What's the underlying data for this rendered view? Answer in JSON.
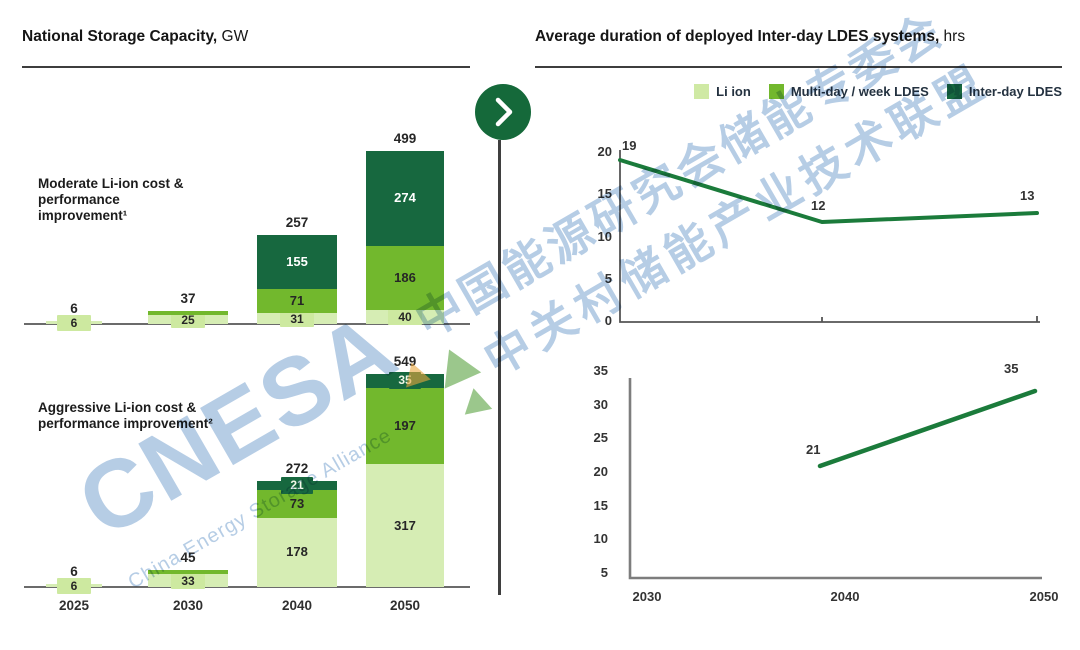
{
  "page": {
    "background": "#ffffff"
  },
  "colors": {
    "light_green": "#d6edb4",
    "chip_green": "#cde9a0",
    "mid_green": "#72b82d",
    "dark_green": "#17683f",
    "line_green": "#1b7b3b",
    "circle_green": "#15693a",
    "watermark_blue": "#a9c4e1",
    "logo_orange": "#e9a63d",
    "logo_green": "#58a23f",
    "axis_gray": "#6b6b6b",
    "text_dark": "#262626"
  },
  "left_panel": {
    "title": {
      "bold": "National Storage Capacity,",
      "unit": " GW"
    },
    "charts": [
      {
        "name": "moderate",
        "label_lines": [
          "Moderate Li-ion cost &",
          "performance",
          "improvement¹"
        ]
      },
      {
        "name": "aggressive",
        "label_lines": [
          "Aggressive Li-ion cost &",
          "performance improvement²"
        ]
      }
    ]
  },
  "right_panel": {
    "title": {
      "bold": "Average duration of deployed Inter-day LDES systems,",
      "unit": " hrs"
    }
  },
  "legend": {
    "items": [
      {
        "label": "Li ion",
        "color": "#cfe9a4"
      },
      {
        "label": "Multi-day / week LDES",
        "color": "#72b82d"
      },
      {
        "label": "Inter-day LDES",
        "color": "#17683f"
      }
    ]
  },
  "watermark": {
    "brand": "CNESA",
    "subtitle": "China Energy Storage Alliance",
    "cn_line1": "中国能源研究会储能专委会",
    "cn_line2": "中关村储能产业技术联盟"
  },
  "chart_data": [
    {
      "id": "national-capacity-moderate",
      "type": "bar",
      "stacked": true,
      "title": "Moderate Li-ion cost & performance improvement¹",
      "unit": "GW",
      "categories": [
        "2025",
        "2030",
        "2040",
        "2050"
      ],
      "series": [
        {
          "name": "Li ion",
          "values": [
            6,
            25,
            31,
            40
          ],
          "labels": [
            "6",
            "25",
            "31",
            "40"
          ]
        },
        {
          "name": "Multi-day / week LDES",
          "values": [
            0,
            12,
            71,
            186
          ],
          "labels": [
            null,
            null,
            "71",
            "186"
          ]
        },
        {
          "name": "Inter-day LDES",
          "values": [
            0,
            0,
            155,
            274
          ],
          "labels": [
            null,
            null,
            "155",
            "274"
          ]
        }
      ],
      "totals": [
        6,
        37,
        257,
        499
      ],
      "total_labels": [
        "6",
        "37",
        "257",
        "499"
      ],
      "x_axis_labels_visible": false,
      "grid": false
    },
    {
      "id": "national-capacity-aggressive",
      "type": "bar",
      "stacked": true,
      "title": "Aggressive Li-ion cost & performance improvement²",
      "unit": "GW",
      "categories": [
        "2025",
        "2030",
        "2040",
        "2050"
      ],
      "series": [
        {
          "name": "Li ion",
          "values": [
            6,
            33,
            178,
            317
          ],
          "labels": [
            "6",
            "33",
            "178",
            "317"
          ]
        },
        {
          "name": "Multi-day / week LDES",
          "values": [
            0,
            12,
            73,
            197
          ],
          "labels": [
            null,
            null,
            "73",
            "197"
          ]
        },
        {
          "name": "Inter-day LDES",
          "values": [
            0,
            0,
            21,
            35
          ],
          "labels": [
            null,
            null,
            "21",
            "35"
          ]
        }
      ],
      "totals": [
        6,
        45,
        272,
        549
      ],
      "total_labels": [
        "6",
        "45",
        "272",
        "549"
      ],
      "x_axis_labels_visible": true,
      "grid": false
    },
    {
      "id": "duration-moderate",
      "type": "line",
      "title": "Average duration of deployed Inter-day LDES systems (moderate), hrs",
      "x": [
        2030,
        2040,
        2050
      ],
      "values": [
        19,
        12,
        13
      ],
      "point_labels": [
        "19",
        "12",
        "13"
      ],
      "yticks": [
        0,
        5,
        10,
        15,
        20
      ],
      "ylim": [
        0,
        20
      ],
      "xtick_labels": [],
      "grid": false,
      "series_name": "Inter-day LDES"
    },
    {
      "id": "duration-aggressive",
      "type": "line",
      "title": "Average duration of deployed Inter-day LDES systems (aggressive), hrs",
      "x": [
        2040,
        2050
      ],
      "values": [
        21,
        35
      ],
      "point_labels": [
        "21",
        "35"
      ],
      "yticks": [
        5,
        10,
        15,
        20,
        25,
        30,
        35
      ],
      "ylim": [
        5,
        35
      ],
      "xtick_labels": [
        "2030",
        "2040",
        "2050"
      ],
      "grid": false,
      "series_name": "Inter-day LDES"
    }
  ]
}
